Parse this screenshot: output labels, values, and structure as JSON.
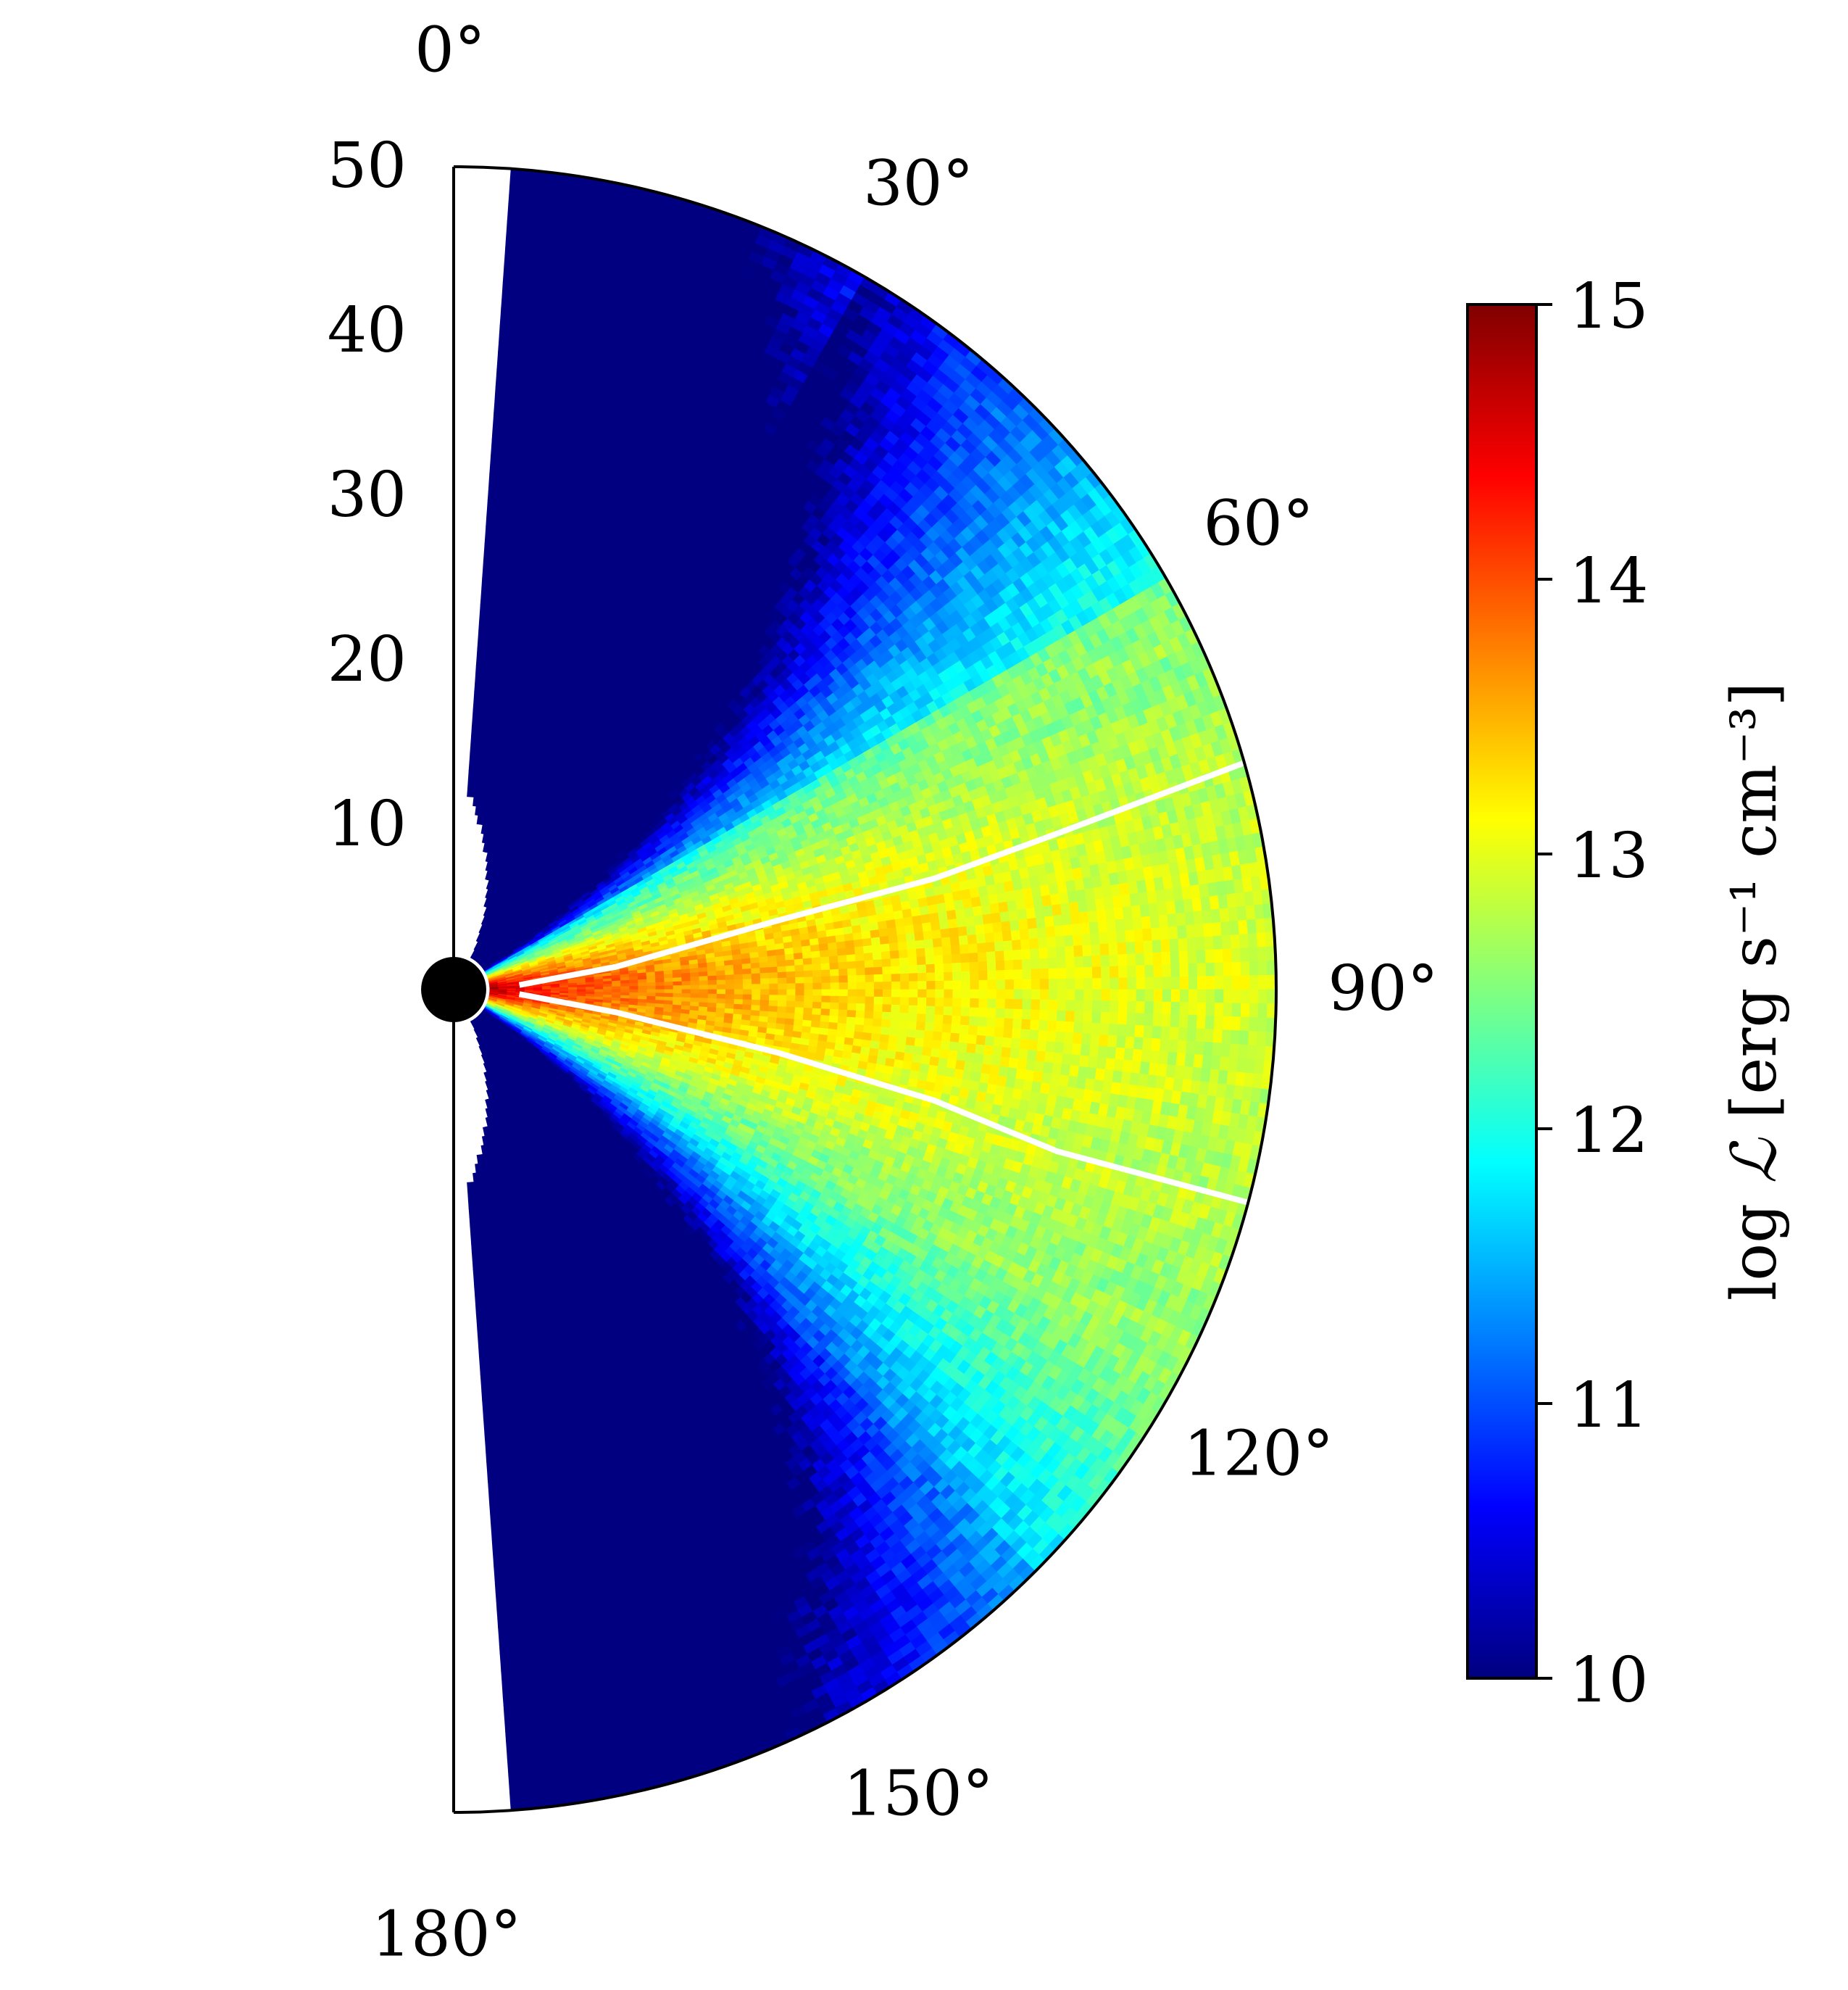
{
  "chart_data": {
    "type": "heatmap",
    "subtype": "polar-half-disk",
    "colormap": "jet",
    "colormap_colors": [
      "#000080",
      "#0000ff",
      "#0080ff",
      "#00ffff",
      "#80ff80",
      "#ffff00",
      "#ff8000",
      "#ff0000",
      "#800000"
    ],
    "theta_ticks": [
      {
        "value": 0,
        "label": "0°"
      },
      {
        "value": 30,
        "label": "30°"
      },
      {
        "value": 60,
        "label": "60°"
      },
      {
        "value": 90,
        "label": "90°"
      },
      {
        "value": 120,
        "label": "120°"
      },
      {
        "value": 150,
        "label": "150°"
      },
      {
        "value": 180,
        "label": "180°"
      }
    ],
    "r_ticks": [
      {
        "value": 10,
        "label": "10"
      },
      {
        "value": 20,
        "label": "20"
      },
      {
        "value": 30,
        "label": "30"
      },
      {
        "value": 40,
        "label": "40"
      },
      {
        "value": 50,
        "label": "50"
      }
    ],
    "rlim": [
      0,
      50
    ],
    "thetalim": [
      0,
      180
    ],
    "colorbar": {
      "label_prefix": "log",
      "label_symbol": "ℒ",
      "label_units": "[erg s⁻¹ cm⁻³]",
      "range": [
        10,
        15
      ],
      "ticks": [
        {
          "value": 10,
          "label": "10"
        },
        {
          "value": 11,
          "label": "11"
        },
        {
          "value": 12,
          "label": "12"
        },
        {
          "value": 13,
          "label": "13"
        },
        {
          "value": 14,
          "label": "14"
        },
        {
          "value": 15,
          "label": "15"
        }
      ]
    },
    "contour": {
      "color": "#ffffff",
      "upper": [
        [
          4,
          86
        ],
        [
          10,
          82
        ],
        [
          20,
          78
        ],
        [
          30,
          77
        ],
        [
          38,
          75.5
        ],
        [
          50,
          74
        ]
      ],
      "lower": [
        [
          4,
          94
        ],
        [
          10,
          98
        ],
        [
          20,
          101
        ],
        [
          30,
          103
        ],
        [
          38,
          105
        ],
        [
          50,
          105
        ]
      ]
    },
    "central_object": {
      "radius": 2.2,
      "color": "#000000"
    },
    "emissivity_model": {
      "midplane_theta": 90,
      "peak_log": 14.8,
      "radial_falloff": 1.4,
      "angular_width_deg": 28,
      "floor_log": 10.0,
      "empty_wedge_deg": 4.5
    },
    "grid": {
      "n_r": 90,
      "n_theta": 180,
      "seed": 7
    }
  }
}
